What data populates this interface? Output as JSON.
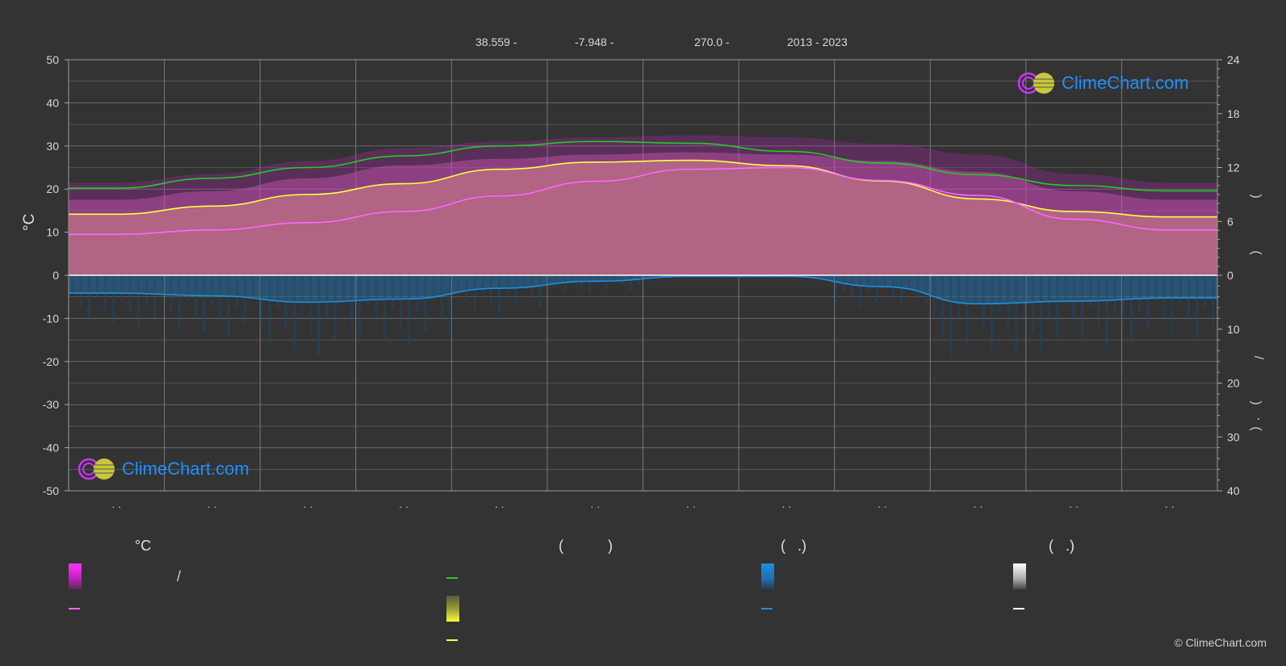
{
  "header": {
    "latitude": "38.559 -",
    "longitude": "-7.948 -",
    "elevation": "270.0 -",
    "period": "2013 - 2023"
  },
  "left_axis_unit": "°C",
  "logo_text": "ClimeChart.com",
  "copyright": "© ClimeChart.com",
  "legend": {
    "col1_title": "°C",
    "col2_title": "(           )",
    "col3_title": "(   .)",
    "col4_title": "(   .)",
    "slash": "/"
  },
  "colors": {
    "background": "#333333",
    "daylight": "#22cc22",
    "sunshine": "#ffff44",
    "sunshine_fill": "#9a9a3a",
    "max_temp": "#ff66ff",
    "temp_fill": "#cc66aa",
    "temp_range_top": "#cc22cc",
    "precip": "#1e8fe0",
    "precip_fill": "#1a4a70",
    "snow": "#ffffff",
    "grid": "#6a6a6a",
    "zero_line": "#ffffff"
  },
  "chart_data": {
    "type": "line",
    "months": 12,
    "left_axis": {
      "label": "°C",
      "ticks": [
        50,
        40,
        30,
        20,
        10,
        0,
        -10,
        -20,
        -30,
        -40,
        -50
      ],
      "range": [
        -50,
        50
      ]
    },
    "right_axis_top": {
      "label": "( )",
      "ticks": [
        24,
        18,
        12,
        6,
        0
      ],
      "range": [
        0,
        24
      ]
    },
    "right_axis_bottom": {
      "label": "/ ( · )",
      "ticks": [
        0,
        10,
        20,
        30,
        40
      ],
      "range": [
        0,
        40
      ]
    },
    "x_tick_labels": [
      "· ·",
      "· ·",
      "· ·",
      "· ·",
      "· ·",
      "· ·",
      "· ·",
      "· ·",
      "· ·",
      "· ·",
      "· ·",
      "· ·"
    ],
    "series": [
      {
        "key": "daylight_hours",
        "axis": "right_top",
        "color": "#22cc22",
        "values": [
          9.7,
          10.8,
          12.0,
          13.3,
          14.4,
          14.9,
          14.7,
          13.8,
          12.5,
          11.2,
          10.0,
          9.4
        ]
      },
      {
        "key": "sunshine_hours",
        "axis": "right_top",
        "color": "#ffff44",
        "values": [
          6.8,
          7.7,
          9.0,
          10.2,
          11.8,
          12.6,
          12.8,
          12.2,
          10.5,
          8.5,
          7.1,
          6.5
        ]
      },
      {
        "key": "max_temp",
        "axis": "left",
        "color": "#ff66ff",
        "values": [
          9.5,
          10.5,
          12.2,
          14.8,
          18.4,
          21.8,
          24.6,
          25.0,
          22.0,
          18.5,
          13.0,
          10.5
        ]
      },
      {
        "key": "avg_temp_top",
        "axis": "left",
        "color": "#cc22cc",
        "values": [
          17.5,
          19.5,
          22.5,
          25.5,
          27.0,
          28.0,
          28.5,
          28.0,
          26.5,
          24.0,
          19.5,
          17.5
        ]
      },
      {
        "key": "precipitation",
        "axis": "right_bottom",
        "color": "#1e8fe0",
        "values": [
          3.3,
          3.8,
          5.0,
          4.4,
          2.4,
          1.1,
          0.2,
          0.2,
          2.1,
          5.3,
          4.8,
          4.2
        ]
      }
    ]
  }
}
